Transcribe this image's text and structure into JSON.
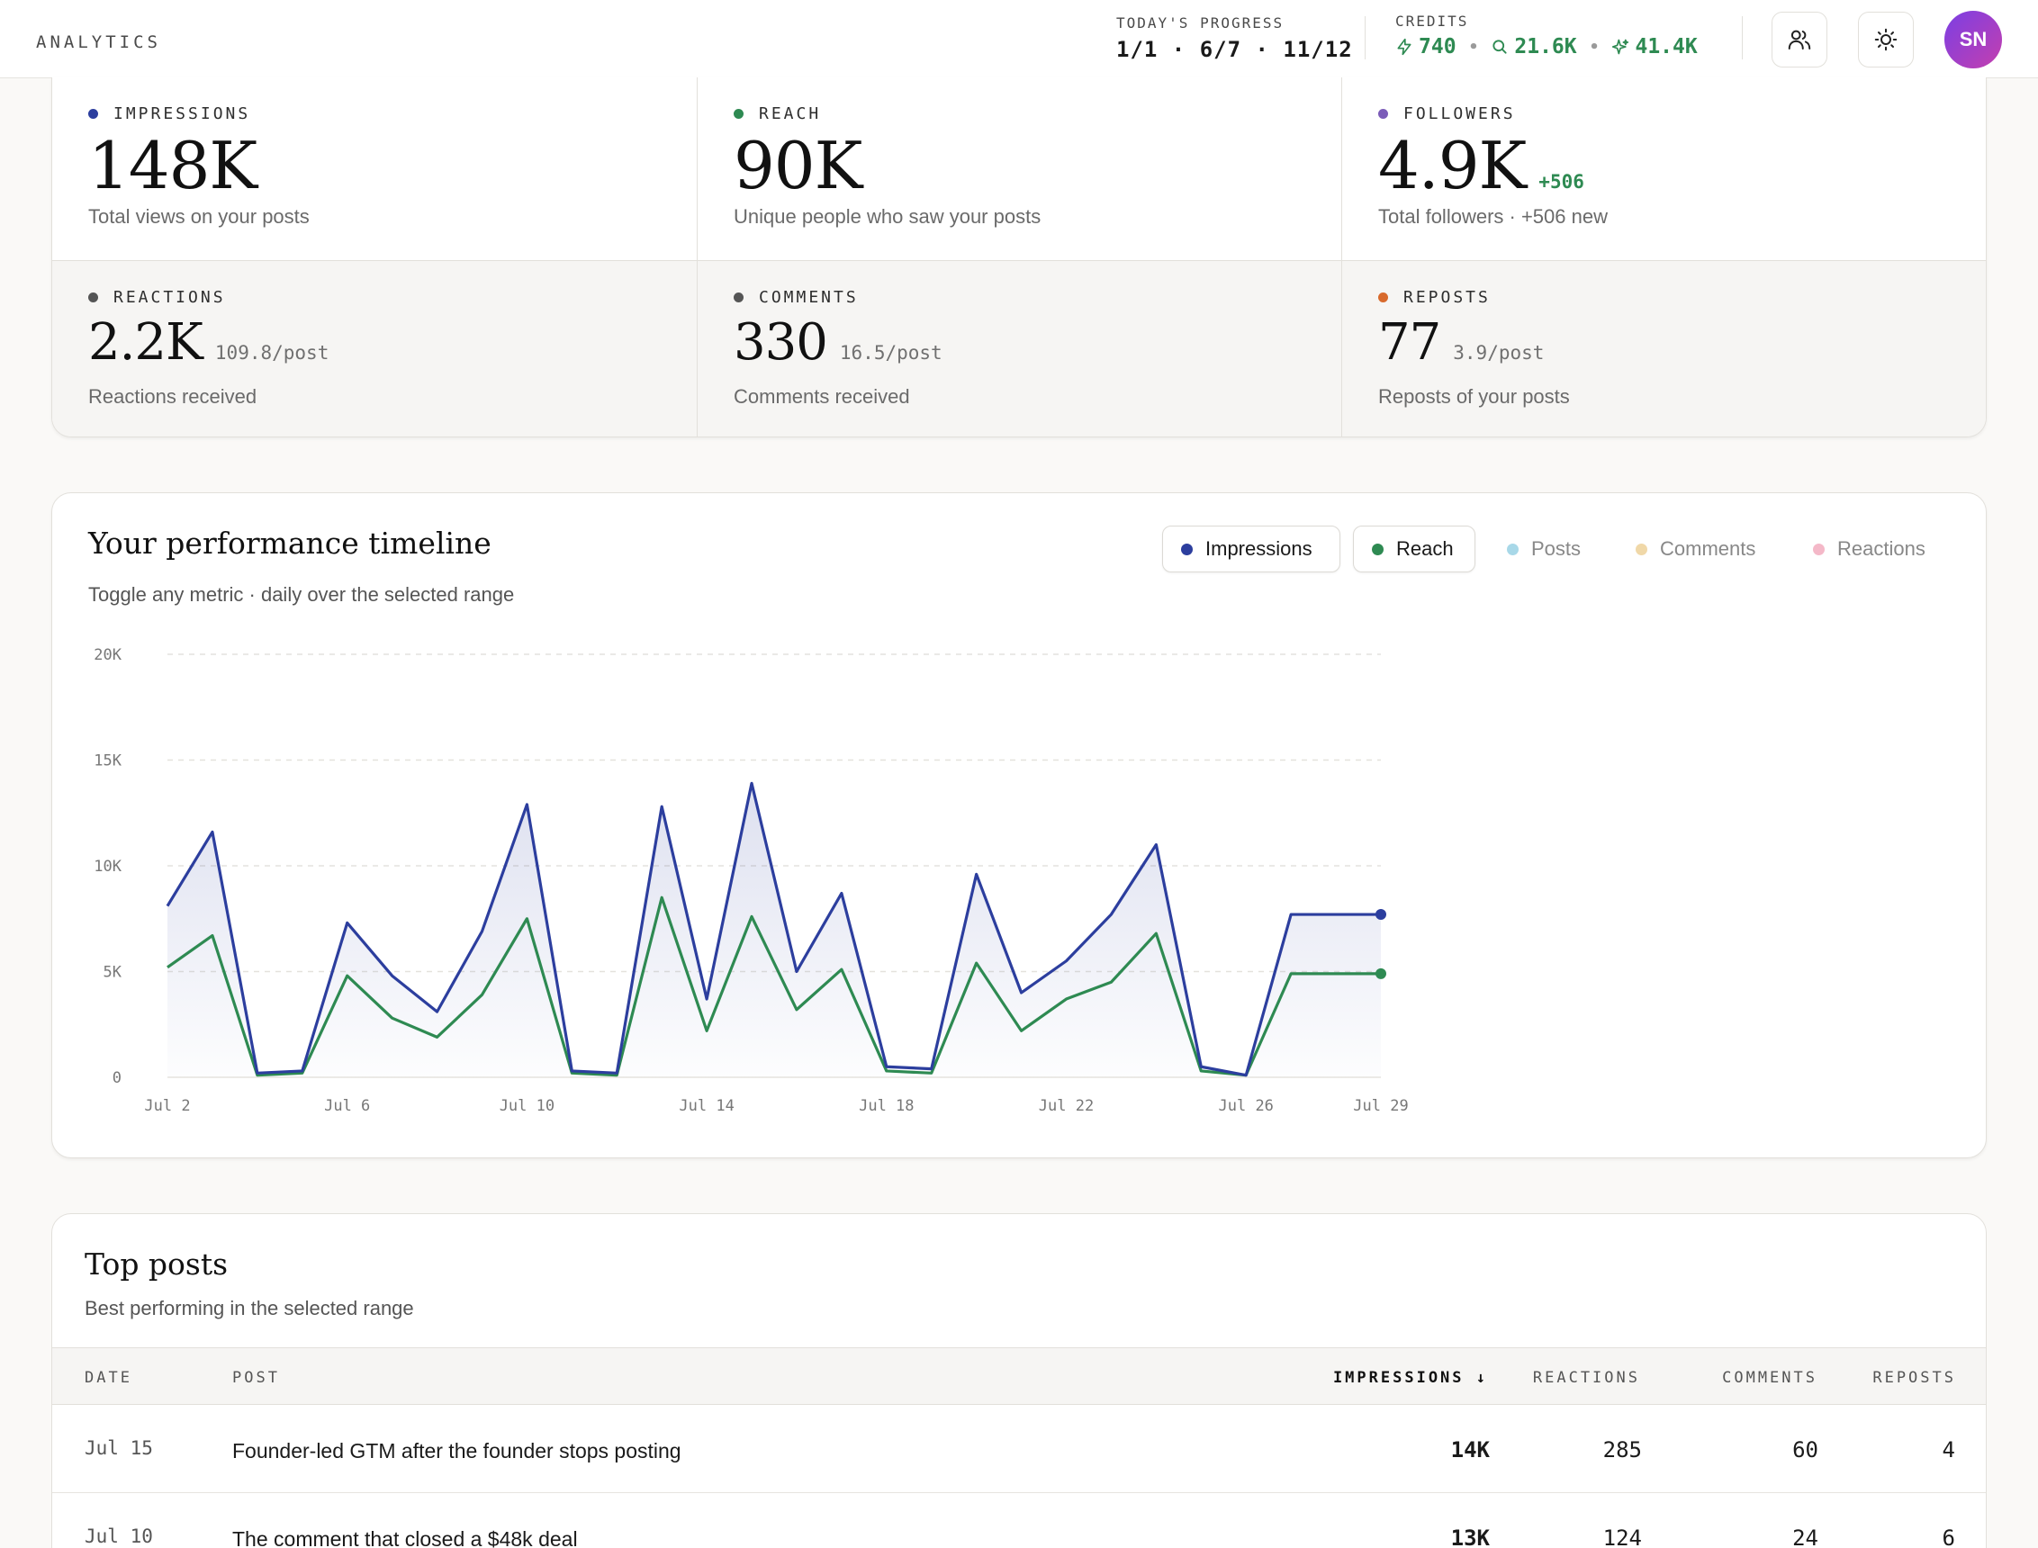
{
  "topbar": {
    "brand": "ANALYTICS",
    "progress_label": "TODAY'S PROGRESS",
    "progress_value": "1/1 · 6/7 · 11/12",
    "credits_label": "CREDITS",
    "credits": [
      "740",
      "21.6K",
      "41.4K"
    ],
    "avatar_initials": "SN"
  },
  "stats": [
    {
      "label": "IMPRESSIONS",
      "value": "148K",
      "delta": "",
      "per": "",
      "desc": "Total views on your posts",
      "color": "#2c3e9e"
    },
    {
      "label": "REACH",
      "value": "90K",
      "delta": "",
      "per": "",
      "desc": "Unique people who saw your posts",
      "color": "#2e8a52"
    },
    {
      "label": "FOLLOWERS",
      "value": "4.9K",
      "delta": "+506",
      "per": "",
      "desc": "Total followers · +506 new",
      "color": "#7b5cb8"
    },
    {
      "label": "REACTIONS",
      "value": "2.2K",
      "delta": "",
      "per": "109.8/post",
      "desc": "Reactions received",
      "color": "#555555"
    },
    {
      "label": "COMMENTS",
      "value": "330",
      "delta": "",
      "per": "16.5/post",
      "desc": "Comments received",
      "color": "#555555"
    },
    {
      "label": "REPOSTS",
      "value": "77",
      "delta": "",
      "per": "3.9/post",
      "desc": "Reposts of your posts",
      "color": "#d86a2c"
    }
  ],
  "timeline": {
    "title": "Your performance timeline",
    "subtitle": "Toggle any metric · daily over the selected range",
    "legend": [
      {
        "label": "Impressions",
        "color": "#2c3e9e",
        "active": true
      },
      {
        "label": "Reach",
        "color": "#2e8a52",
        "active": true
      },
      {
        "label": "Posts",
        "color": "#a8d8e8",
        "active": false
      },
      {
        "label": "Comments",
        "color": "#f0d8a8",
        "active": false
      },
      {
        "label": "Reactions",
        "color": "#f4b8c8",
        "active": false
      }
    ]
  },
  "chart_data": {
    "type": "area",
    "title": "Your performance timeline",
    "x": [
      "Jul 2",
      "Jul 3",
      "Jul 4",
      "Jul 5",
      "Jul 6",
      "Jul 7",
      "Jul 8",
      "Jul 9",
      "Jul 10",
      "Jul 11",
      "Jul 12",
      "Jul 13",
      "Jul 14",
      "Jul 15",
      "Jul 16",
      "Jul 17",
      "Jul 18",
      "Jul 19",
      "Jul 20",
      "Jul 21",
      "Jul 22",
      "Jul 23",
      "Jul 24",
      "Jul 25",
      "Jul 26",
      "Jul 27",
      "Jul 28",
      "Jul 29"
    ],
    "x_ticks": [
      "Jul 2",
      "Jul 6",
      "Jul 10",
      "Jul 14",
      "Jul 18",
      "Jul 22",
      "Jul 26",
      "Jul 29"
    ],
    "y_ticks": [
      "0",
      "5K",
      "10K",
      "15K",
      "20K"
    ],
    "ylim": [
      0,
      20000
    ],
    "grid": true,
    "series": [
      {
        "name": "Impressions",
        "color": "#2c3e9e",
        "values": [
          8100,
          11600,
          200,
          300,
          7300,
          4800,
          3100,
          6900,
          12900,
          300,
          200,
          12800,
          3700,
          13900,
          5000,
          8700,
          500,
          400,
          9600,
          4000,
          5500,
          7700,
          11000,
          500,
          100,
          7700,
          7700,
          7700
        ]
      },
      {
        "name": "Reach",
        "color": "#2e8a52",
        "values": [
          5200,
          6700,
          100,
          200,
          4800,
          2800,
          1900,
          3900,
          7500,
          200,
          100,
          8500,
          2200,
          7600,
          3200,
          5100,
          300,
          200,
          5400,
          2200,
          3700,
          4500,
          6800,
          300,
          100,
          4900,
          4900,
          4900
        ]
      }
    ]
  },
  "top_posts": {
    "title": "Top posts",
    "subtitle": "Best performing in the selected range",
    "columns": [
      "DATE",
      "POST",
      "IMPRESSIONS ↓",
      "REACTIONS",
      "COMMENTS",
      "REPOSTS"
    ],
    "rows": [
      {
        "date": "Jul 15",
        "post": "Founder-led GTM after the founder stops posting",
        "impressions": "14K",
        "reactions": "285",
        "comments": "60",
        "reposts": "4"
      },
      {
        "date": "Jul 10",
        "post": "The comment that closed a $48k deal",
        "impressions": "13K",
        "reactions": "124",
        "comments": "24",
        "reposts": "6"
      }
    ]
  }
}
